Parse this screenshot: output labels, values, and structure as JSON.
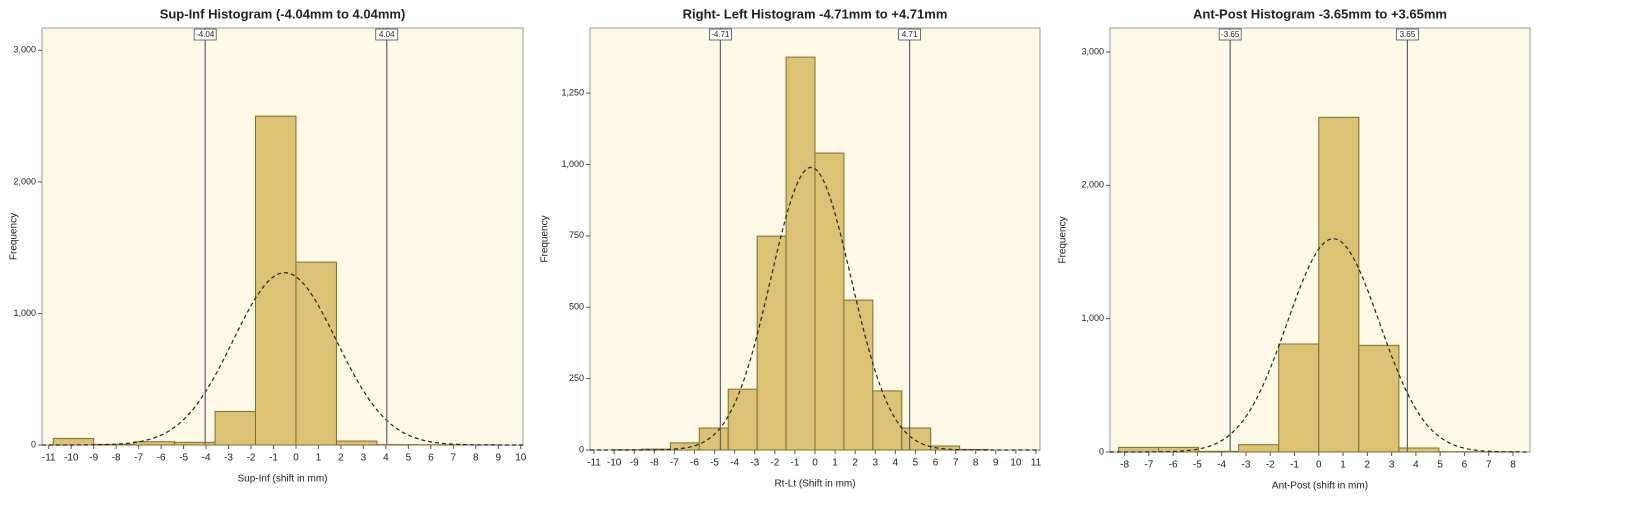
{
  "chart_data": [
    {
      "type": "histogram",
      "title": "Sup-Inf Histogram (-4.04mm  to 4.04mm)",
      "x_label": "Sup-Inf (shift in mm)",
      "y_label": "Frequency",
      "bins": [
        -10.8,
        -9,
        -7.2,
        -5.4,
        -3.6,
        -1.8,
        0,
        1.8,
        3.6,
        5.4,
        7.2,
        9
      ],
      "counts": [
        50,
        5,
        25,
        20,
        255,
        2500,
        1390,
        30,
        3,
        2,
        1
      ],
      "color": "#dcc274",
      "xlim": [
        -11.3,
        10.1
      ],
      "ylim": [
        0,
        3170
      ],
      "xticks": [
        -11,
        -10,
        -9,
        -8,
        -7,
        -6,
        -5,
        -4,
        -3,
        -2,
        -1,
        0,
        1,
        2,
        3,
        4,
        5,
        6,
        7,
        8,
        9,
        10
      ],
      "yticks": [
        0,
        {
          "value": 1000,
          "label": "1,000"
        },
        {
          "value": 2000,
          "label": "2,000"
        },
        {
          "value": 3000,
          "label": "3,000"
        }
      ],
      "ref_lines": [
        -4.04,
        4.04
      ],
      "normal_fit": {
        "mean": -0.5,
        "sd": 2.3,
        "peak": 1310
      }
    },
    {
      "type": "histogram",
      "title": "Right- Left Histogram -4.71mm to +4.71mm",
      "x_label": "Rt-Lt (Shift in mm)",
      "y_label": "Frequency",
      "bins": [
        -10.08,
        -8.64,
        -7.2,
        -5.76,
        -4.32,
        -2.88,
        -1.44,
        0,
        1.44,
        2.88,
        4.32,
        5.76,
        7.2,
        8.64
      ],
      "counts": [
        1,
        3,
        25,
        77,
        213,
        749,
        1376,
        1040,
        525,
        207,
        77,
        14,
        2
      ],
      "color": "#dcc274",
      "xlim": [
        -11.2,
        11.2
      ],
      "ylim": [
        0,
        1478
      ],
      "xticks": [
        -11,
        -10,
        -9,
        -8,
        -7,
        -6,
        -5,
        -4,
        -3,
        -2,
        -1,
        0,
        1,
        2,
        3,
        4,
        5,
        6,
        7,
        8,
        9,
        10,
        11
      ],
      "yticks": [
        0,
        250,
        500,
        750,
        {
          "value": 1000,
          "label": "1,000"
        },
        {
          "value": 1250,
          "label": "1,250"
        }
      ],
      "ref_lines": [
        -4.71,
        4.71
      ],
      "normal_fit": {
        "mean": -0.2,
        "sd": 2.0,
        "peak": 990
      }
    },
    {
      "type": "histogram",
      "title": "Ant-Post Histogram -3.65mm to +3.65mm",
      "x_label": "Ant-Post (shift in mm)",
      "y_label": "Frequency",
      "bins": [
        -8.25,
        -6.6,
        -4.95,
        -3.3,
        -1.65,
        0,
        1.65,
        3.3,
        4.95,
        6.6,
        8.25
      ],
      "counts": [
        35,
        35,
        5,
        55,
        810,
        2510,
        800,
        30,
        2,
        1
      ],
      "color": "#dcc274",
      "xlim": [
        -8.6,
        8.7
      ],
      "ylim": [
        0,
        3180
      ],
      "xticks": [
        -8,
        -7,
        -6,
        -5,
        -4,
        -3,
        -2,
        -1,
        0,
        1,
        2,
        3,
        4,
        5,
        6,
        7,
        8
      ],
      "yticks": [
        0,
        {
          "value": 1000,
          "label": "1,000"
        },
        {
          "value": 2000,
          "label": "2,000"
        },
        {
          "value": 3000,
          "label": "3,000"
        }
      ],
      "ref_lines": [
        -3.65,
        3.65
      ],
      "normal_fit": {
        "mean": 0.6,
        "sd": 1.9,
        "peak": 1600
      }
    }
  ]
}
